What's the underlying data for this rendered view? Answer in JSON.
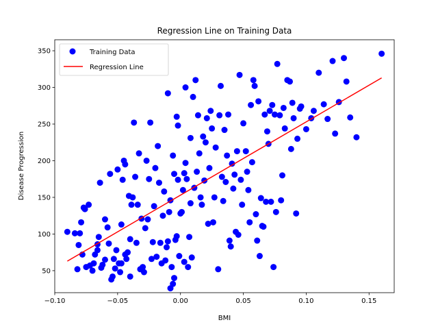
{
  "chart_data": {
    "type": "scatter",
    "title": "Regression Line on Training Data",
    "xlabel": "BMI",
    "ylabel": "Disease Progression",
    "xlim": [
      -0.1,
      0.17
    ],
    "ylim": [
      20,
      365
    ],
    "x_ticks": [
      -0.1,
      -0.05,
      0.0,
      0.05,
      0.1,
      0.15
    ],
    "x_tick_labels": [
      "−0.10",
      "−0.05",
      "0.00",
      "0.05",
      "0.10",
      "0.15"
    ],
    "y_ticks": [
      50,
      100,
      150,
      200,
      250,
      300,
      350
    ],
    "y_tick_labels": [
      "50",
      "100",
      "150",
      "200",
      "250",
      "300",
      "350"
    ],
    "grid": false,
    "legend_position": "upper-left",
    "series": [
      {
        "name": "Training Data",
        "kind": "scatter",
        "color": "#0000ff",
        "points": [
          [
            -0.09,
            103
          ],
          [
            -0.084,
            101
          ],
          [
            -0.08,
            101
          ],
          [
            -0.082,
            52
          ],
          [
            -0.081,
            85
          ],
          [
            -0.078,
            72
          ],
          [
            -0.079,
            116
          ],
          [
            -0.077,
            136
          ],
          [
            -0.076,
            134
          ],
          [
            -0.073,
            140
          ],
          [
            -0.075,
            55
          ],
          [
            -0.072,
            57
          ],
          [
            -0.07,
            50
          ],
          [
            -0.069,
            60
          ],
          [
            -0.068,
            72
          ],
          [
            -0.066,
            78
          ],
          [
            -0.066,
            86
          ],
          [
            -0.065,
            96
          ],
          [
            -0.064,
            170
          ],
          [
            -0.063,
            54
          ],
          [
            -0.062,
            58
          ],
          [
            -0.06,
            65
          ],
          [
            -0.06,
            120
          ],
          [
            -0.058,
            109
          ],
          [
            -0.057,
            87
          ],
          [
            -0.056,
            182
          ],
          [
            -0.055,
            38
          ],
          [
            -0.054,
            42
          ],
          [
            -0.053,
            66
          ],
          [
            -0.052,
            53
          ],
          [
            -0.051,
            78
          ],
          [
            -0.05,
            188
          ],
          [
            -0.049,
            60
          ],
          [
            -0.048,
            48
          ],
          [
            -0.047,
            113
          ],
          [
            -0.047,
            60
          ],
          [
            -0.046,
            174
          ],
          [
            -0.045,
            200
          ],
          [
            -0.044,
            195
          ],
          [
            -0.044,
            72
          ],
          [
            -0.043,
            66
          ],
          [
            -0.042,
            75
          ],
          [
            -0.041,
            152
          ],
          [
            -0.04,
            42
          ],
          [
            -0.04,
            93
          ],
          [
            -0.039,
            140
          ],
          [
            -0.038,
            150
          ],
          [
            -0.037,
            252
          ],
          [
            -0.036,
            178
          ],
          [
            -0.035,
            88
          ],
          [
            -0.034,
            140
          ],
          [
            -0.033,
            210
          ],
          [
            -0.032,
            52
          ],
          [
            -0.031,
            121
          ],
          [
            -0.03,
            55
          ],
          [
            -0.029,
            48
          ],
          [
            -0.028,
            108
          ],
          [
            -0.027,
            200
          ],
          [
            -0.026,
            120
          ],
          [
            -0.025,
            175
          ],
          [
            -0.024,
            252
          ],
          [
            -0.023,
            66
          ],
          [
            -0.022,
            89
          ],
          [
            -0.021,
            138
          ],
          [
            -0.02,
            190
          ],
          [
            -0.019,
            69
          ],
          [
            -0.018,
            220
          ],
          [
            -0.017,
            170
          ],
          [
            -0.016,
            88
          ],
          [
            -0.015,
            60
          ],
          [
            -0.014,
            125
          ],
          [
            -0.013,
            158
          ],
          [
            -0.012,
            64
          ],
          [
            -0.011,
            82
          ],
          [
            -0.01,
            90
          ],
          [
            -0.009,
            130
          ],
          [
            -0.008,
            146
          ],
          [
            -0.007,
            55
          ],
          [
            -0.006,
            207
          ],
          [
            -0.005,
            182
          ],
          [
            -0.004,
            92
          ],
          [
            -0.003,
            97
          ],
          [
            -0.002,
            174
          ],
          [
            -0.001,
            70
          ],
          [
            -0.01,
            292
          ],
          [
            -0.008,
            26
          ],
          [
            -0.006,
            32
          ],
          [
            -0.005,
            40
          ],
          [
            -0.003,
            260
          ],
          [
            -0.002,
            248
          ],
          [
            0.0,
            128
          ],
          [
            0.001,
            130
          ],
          [
            0.002,
            160
          ],
          [
            0.003,
            183
          ],
          [
            0.003,
            62
          ],
          [
            0.004,
            197
          ],
          [
            0.004,
            300
          ],
          [
            0.005,
            175
          ],
          [
            0.006,
            55
          ],
          [
            0.007,
            96
          ],
          [
            0.008,
            142
          ],
          [
            0.008,
            231
          ],
          [
            0.009,
            68
          ],
          [
            0.01,
            287
          ],
          [
            0.011,
            163
          ],
          [
            0.012,
            310
          ],
          [
            0.013,
            185
          ],
          [
            0.014,
            262
          ],
          [
            0.015,
            210
          ],
          [
            0.016,
            150
          ],
          [
            0.017,
            140
          ],
          [
            0.018,
            233
          ],
          [
            0.019,
            173
          ],
          [
            0.02,
            225
          ],
          [
            0.021,
            258
          ],
          [
            0.022,
            114
          ],
          [
            0.023,
            190
          ],
          [
            0.024,
            268
          ],
          [
            0.025,
            244
          ],
          [
            0.026,
            116
          ],
          [
            0.027,
            150
          ],
          [
            0.028,
            218
          ],
          [
            0.03,
            52
          ],
          [
            0.031,
            262
          ],
          [
            0.032,
            302
          ],
          [
            0.033,
            178
          ],
          [
            0.034,
            145
          ],
          [
            0.035,
            242
          ],
          [
            0.036,
            171
          ],
          [
            0.037,
            207
          ],
          [
            0.038,
            263
          ],
          [
            0.039,
            91
          ],
          [
            0.04,
            83
          ],
          [
            0.041,
            196
          ],
          [
            0.042,
            162
          ],
          [
            0.043,
            181
          ],
          [
            0.044,
            103
          ],
          [
            0.045,
            213
          ],
          [
            0.046,
            99
          ],
          [
            0.047,
            317
          ],
          [
            0.048,
            174
          ],
          [
            0.049,
            140
          ],
          [
            0.05,
            251
          ],
          [
            0.052,
            213
          ],
          [
            0.053,
            185
          ],
          [
            0.054,
            160
          ],
          [
            0.055,
            116
          ],
          [
            0.056,
            276
          ],
          [
            0.057,
            198
          ],
          [
            0.058,
            310
          ],
          [
            0.059,
            302
          ],
          [
            0.06,
            127
          ],
          [
            0.061,
            91
          ],
          [
            0.062,
            281
          ],
          [
            0.063,
            70
          ],
          [
            0.064,
            149
          ],
          [
            0.065,
            111
          ],
          [
            0.066,
            110
          ],
          [
            0.067,
            263
          ],
          [
            0.068,
            144
          ],
          [
            0.069,
            240
          ],
          [
            0.07,
            223
          ],
          [
            0.071,
            268
          ],
          [
            0.072,
            144
          ],
          [
            0.073,
            276
          ],
          [
            0.074,
            55
          ],
          [
            0.075,
            263
          ],
          [
            0.076,
            130
          ],
          [
            0.077,
            332
          ],
          [
            0.079,
            262
          ],
          [
            0.08,
            146
          ],
          [
            0.081,
            180
          ],
          [
            0.082,
            272
          ],
          [
            0.083,
            244
          ],
          [
            0.085,
            310
          ],
          [
            0.087,
            308
          ],
          [
            0.088,
            216
          ],
          [
            0.089,
            279
          ],
          [
            0.09,
            258
          ],
          [
            0.092,
            128
          ],
          [
            0.093,
            230
          ],
          [
            0.095,
            271
          ],
          [
            0.096,
            274
          ],
          [
            0.1,
            243
          ],
          [
            0.104,
            258
          ],
          [
            0.106,
            268
          ],
          [
            0.11,
            320
          ],
          [
            0.114,
            277
          ],
          [
            0.117,
            257
          ],
          [
            0.121,
            336
          ],
          [
            0.123,
            237
          ],
          [
            0.126,
            280
          ],
          [
            0.13,
            340
          ],
          [
            0.132,
            308
          ],
          [
            0.135,
            259
          ],
          [
            0.14,
            232
          ],
          [
            0.16,
            346
          ]
        ]
      },
      {
        "name": "Regression Line",
        "kind": "line",
        "color": "#ff0000",
        "x": [
          -0.09,
          0.16
        ],
        "y": [
          63,
          313
        ]
      }
    ]
  }
}
